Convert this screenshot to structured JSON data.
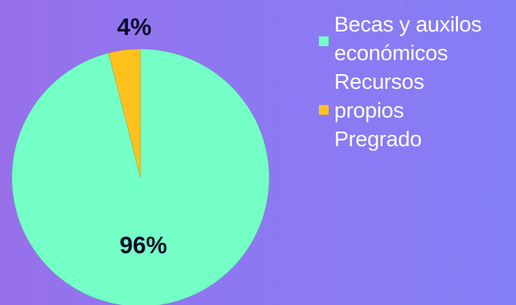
{
  "chart_data": {
    "type": "pie",
    "slices": [
      {
        "label": "Becas y auxilos económicos",
        "value": 96,
        "display": "96%",
        "color": "#74ffc6"
      },
      {
        "label": "Recursos propios Pregrado",
        "value": 4,
        "display": "4%",
        "color": "#ffc21c"
      }
    ],
    "legend_position": "right",
    "legend": [
      {
        "text": "Becas y auxilos\neconómicos",
        "color": "#74ffc6"
      },
      {
        "text": "Recursos\npropios\nPregrado",
        "color": "#ffc21c"
      }
    ]
  }
}
